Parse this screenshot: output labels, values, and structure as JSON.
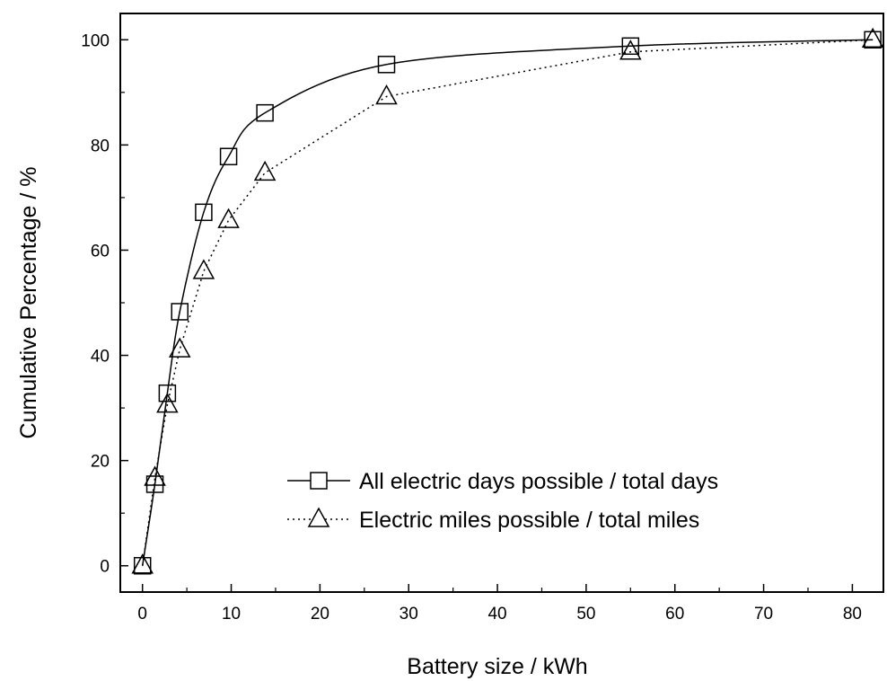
{
  "chart_data": {
    "type": "line",
    "xlabel": "Battery size / kWh",
    "ylabel": "Cumulative Percentage / %",
    "xlim": [
      -2.5,
      83.5
    ],
    "ylim": [
      -5,
      105
    ],
    "xticks": [
      0,
      10,
      20,
      30,
      40,
      50,
      60,
      70,
      80
    ],
    "yticks": [
      0,
      20,
      40,
      60,
      80,
      100
    ],
    "grid": false,
    "legend_position": "bottom-right",
    "series": [
      {
        "name": "All electric days possible / total days",
        "marker": "square",
        "line_style": "solid",
        "smooth": true,
        "x": [
          0,
          1.4,
          2.8,
          4.2,
          6.9,
          9.7,
          13.8,
          27.5,
          55,
          82.3
        ],
        "y": [
          0,
          15.5,
          32.8,
          48.3,
          67.2,
          77.8,
          86.1,
          95.3,
          98.8,
          100
        ]
      },
      {
        "name": "Electric miles possible / total miles",
        "marker": "triangle",
        "line_style": "dotted",
        "smooth": false,
        "x": [
          0,
          1.4,
          2.8,
          4.2,
          6.9,
          9.7,
          13.8,
          27.5,
          55,
          82.3
        ],
        "y": [
          0,
          16.7,
          30.6,
          41.1,
          56.0,
          65.7,
          74.7,
          89.2,
          97.7,
          100
        ]
      }
    ]
  }
}
